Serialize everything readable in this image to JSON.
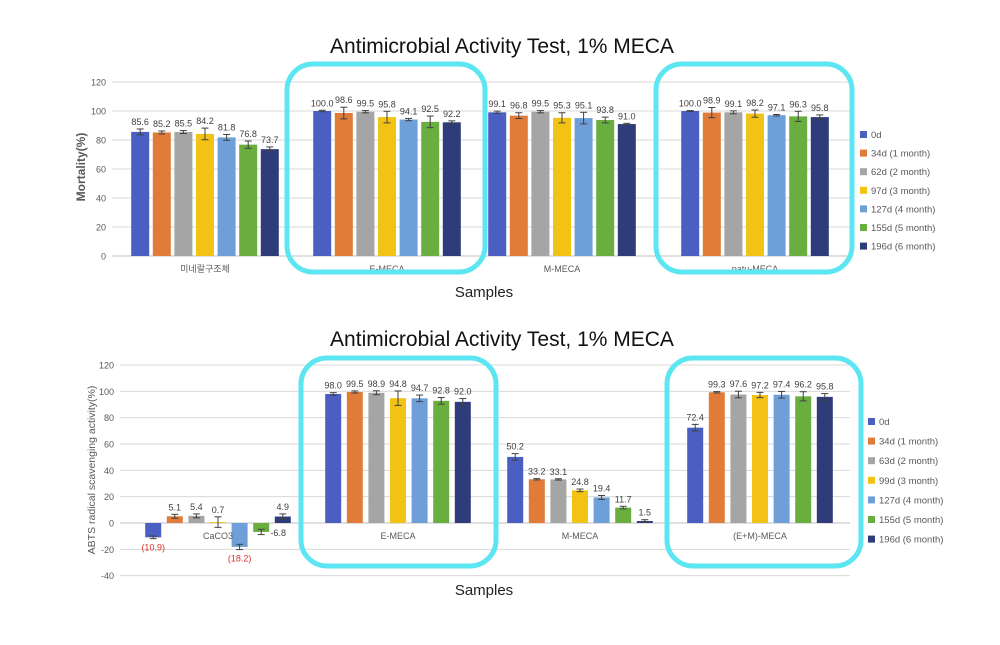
{
  "chart_data": [
    {
      "type": "bar",
      "title": "Antimicrobial Activity Test, 1% MECA",
      "xlabel": "Samples",
      "ylabel": "Mortality(%)",
      "ylim": [
        0,
        120
      ],
      "yticks": [
        0,
        20,
        40,
        60,
        80,
        100,
        120
      ],
      "grid": true,
      "legend_position": "right",
      "categories": [
        "미네랄구조체",
        "E-MECA",
        "M-MECA",
        "patu-MECA"
      ],
      "highlighted_categories": [
        "E-MECA",
        "patu-MECA"
      ],
      "series": [
        {
          "name": "0d",
          "color": "#4A5FC1",
          "values": [
            85.6,
            100.0,
            99.1,
            100.0
          ],
          "labels": [
            "85.6",
            "100.0",
            "99.1",
            "100.0"
          ],
          "errors": [
            2.0,
            0.5,
            0.8,
            0.3
          ]
        },
        {
          "name": "34d (1 month)",
          "color": "#E07B39",
          "values": [
            85.2,
            98.6,
            96.8,
            98.9
          ],
          "labels": [
            "85.2",
            "98.6",
            "96.8",
            "98.9"
          ],
          "errors": [
            1.0,
            4.0,
            2.0,
            3.5
          ]
        },
        {
          "name": "62d (2 month)",
          "color": "#A5A5A5",
          "values": [
            85.5,
            99.5,
            99.5,
            99.1
          ],
          "labels": [
            "85.5",
            "99.5",
            "99.5",
            "99.1"
          ],
          "errors": [
            1.0,
            0.8,
            0.8,
            1.0
          ]
        },
        {
          "name": "97d (3 month)",
          "color": "#F2C314",
          "values": [
            84.2,
            95.8,
            95.3,
            98.2
          ],
          "labels": [
            "84.2",
            "95.8",
            "95.3",
            "98.2"
          ],
          "errors": [
            4.0,
            4.0,
            3.5,
            2.5
          ]
        },
        {
          "name": "127d (4 month)",
          "color": "#6F9FD8",
          "values": [
            81.8,
            94.1,
            95.1,
            97.1
          ],
          "labels": [
            "81.8",
            "94.1",
            "95.1",
            "97.1"
          ],
          "errors": [
            2.0,
            0.8,
            4.0,
            0.5
          ]
        },
        {
          "name": "155d (5 month)",
          "color": "#6AAE3F",
          "values": [
            76.8,
            92.5,
            93.8,
            96.3
          ],
          "labels": [
            "76.8",
            "92.5",
            "93.8",
            "96.3"
          ],
          "errors": [
            2.5,
            4.0,
            2.0,
            3.5
          ]
        },
        {
          "name": "196d (6 month)",
          "color": "#2F3C7A",
          "values": [
            73.7,
            92.2,
            91.0,
            95.8
          ],
          "labels": [
            "73.7",
            "92.2",
            "91.0",
            "95.8"
          ],
          "errors": [
            1.5,
            1.0,
            0.5,
            1.5
          ]
        }
      ]
    },
    {
      "type": "bar",
      "title": "Antimicrobial Activity Test, 1% MECA",
      "xlabel": "Samples",
      "ylabel": "ABTS radical scavenging activity(%)",
      "ylim": [
        -40,
        120
      ],
      "yticks": [
        -40,
        -20,
        0,
        20,
        40,
        60,
        80,
        100,
        120
      ],
      "grid": true,
      "legend_position": "right",
      "categories": [
        "CaCO3",
        "E-MECA",
        "M-MECA",
        "(E+M)-MECA"
      ],
      "highlighted_categories": [
        "E-MECA",
        "(E+M)-MECA"
      ],
      "series": [
        {
          "name": "0d",
          "color": "#4A5FC1",
          "values": [
            -10.9,
            98.0,
            50.2,
            72.4
          ],
          "labels": [
            "(10.9)",
            "98.0",
            "50.2",
            "72.4"
          ],
          "errors": [
            1.0,
            1.0,
            2.5,
            2.5
          ]
        },
        {
          "name": "34d (1 month)",
          "color": "#E07B39",
          "values": [
            5.1,
            99.5,
            33.2,
            99.3
          ],
          "labels": [
            "5.1",
            "99.5",
            "33.2",
            "99.3"
          ],
          "errors": [
            1.5,
            0.8,
            0.5,
            0.5
          ]
        },
        {
          "name": "63d (2 month)",
          "color": "#A5A5A5",
          "values": [
            5.4,
            98.9,
            33.1,
            97.6
          ],
          "labels": [
            "5.4",
            "98.9",
            "33.1",
            "97.6"
          ],
          "errors": [
            1.5,
            1.5,
            0.5,
            2.5
          ]
        },
        {
          "name": "99d (3 month)",
          "color": "#F2C314",
          "values": [
            0.7,
            94.8,
            24.8,
            97.2
          ],
          "labels": [
            "0.7",
            "94.8",
            "24.8",
            "97.2"
          ],
          "errors": [
            4.0,
            5.5,
            1.0,
            2.0
          ]
        },
        {
          "name": "127d (4 month)",
          "color": "#6F9FD8",
          "values": [
            -18.2,
            94.7,
            19.4,
            97.4
          ],
          "labels": [
            "(18.2)",
            "94.7",
            "19.4",
            "97.4"
          ],
          "errors": [
            2.0,
            2.5,
            1.5,
            2.5
          ]
        },
        {
          "name": "155d (5 month)",
          "color": "#6AAE3F",
          "values": [
            -6.8,
            92.8,
            11.7,
            96.2
          ],
          "labels": [
            "-6.8",
            "92.8",
            "11.7",
            "96.2"
          ],
          "errors": [
            2.0,
            2.5,
            1.0,
            3.5
          ]
        },
        {
          "name": "196d (6 month)",
          "color": "#2F3C7A",
          "values": [
            4.9,
            92.0,
            1.5,
            95.8
          ],
          "labels": [
            "4.9",
            "92.0",
            "1.5",
            "95.8"
          ],
          "errors": [
            2.0,
            2.5,
            1.0,
            2.5
          ]
        }
      ],
      "label_colors": {
        "negative_paren": "#E0302A"
      }
    }
  ],
  "style": {
    "highlight_color": "#5CE6F2",
    "axis_text_color": "#595959",
    "grid_color": "#D9D9D9"
  }
}
